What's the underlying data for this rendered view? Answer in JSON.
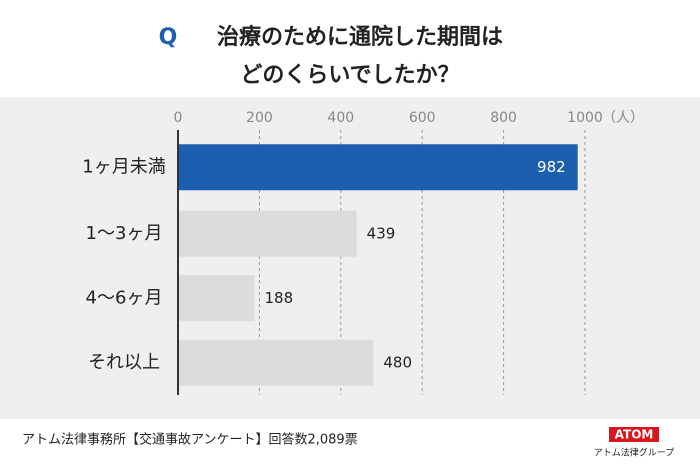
{
  "chart_data": {
    "type": "barh",
    "title_marker": "Q",
    "title": [
      "治療のために通院した期間は",
      "どのくらいでしたか？"
    ],
    "categories": [
      "1ヶ月未満",
      "1〜3ヶ月",
      "4〜6ヶ月",
      "それ以上"
    ],
    "values": [
      982,
      439,
      188,
      480
    ],
    "colors": [
      "#1b5fae",
      "#dcdcdc",
      "#dcdcdc",
      "#dcdcdc"
    ],
    "xlim": [
      0,
      1000
    ],
    "xticks": [
      0,
      200,
      400,
      600,
      800,
      1000
    ],
    "x_unit": "（人）",
    "grid": true
  },
  "footer": {
    "source": "アトム法律事務所【交通事故アンケート】回答数2,089票",
    "logo": "ATOM",
    "logo_caption": "アトム法律グループ"
  }
}
